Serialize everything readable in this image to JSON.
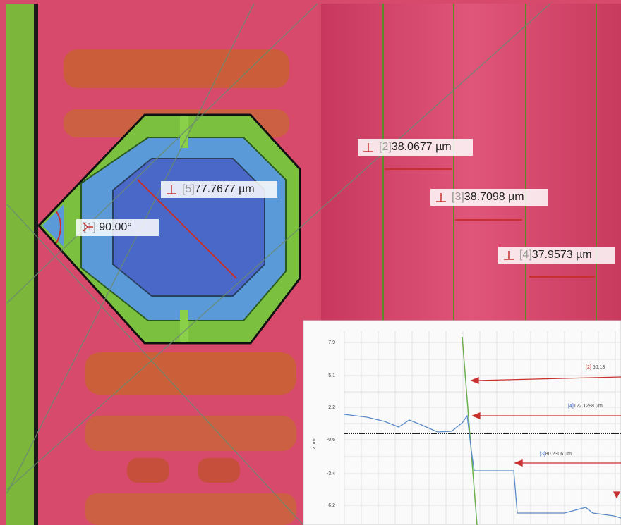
{
  "measurements": [
    {
      "index": "[1]",
      "value": "90.00°"
    },
    {
      "index": "[2]",
      "value": "38.0677 µm"
    },
    {
      "index": "[3]",
      "value": "38.7098 µm"
    },
    {
      "index": "[4]",
      "value": "37.9573 µm"
    },
    {
      "index": "[5]",
      "value": "77.7677 µm"
    }
  ],
  "profile": {
    "y_axis_label": "z µm",
    "yticks": [
      "7.9",
      "5.1",
      "2.2",
      "-0.6",
      "-3.4",
      "-6.2"
    ],
    "annotations": [
      {
        "index": "[2]",
        "value": "50.13"
      },
      {
        "index": "[4]",
        "value": "122.1298 µm"
      },
      {
        "index": "[3]",
        "value": "80.2306 µm"
      }
    ]
  }
}
